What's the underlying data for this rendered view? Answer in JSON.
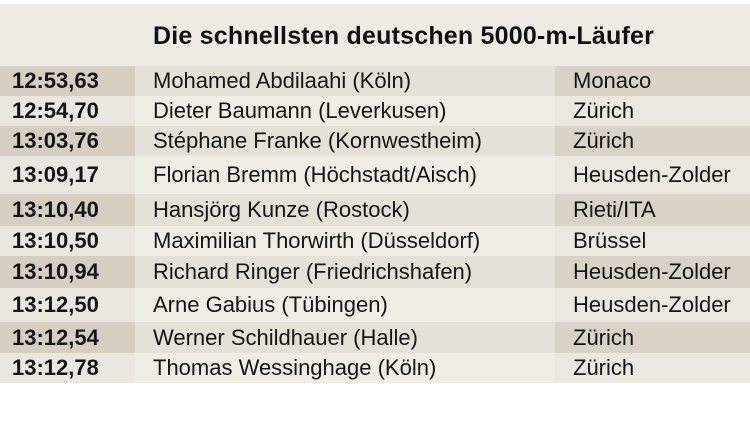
{
  "title": "Die schnellsten deutschen 5000-m-Läufer",
  "rows": [
    {
      "time": "12:53,63",
      "name": "Mohamed Abdilaahi (Köln)",
      "place": "Monaco"
    },
    {
      "time": "12:54,70",
      "name": "Dieter Baumann (Leverkusen)",
      "place": "Zürich"
    },
    {
      "time": "13:03,76",
      "name": "Stéphane Franke (Kornwestheim)",
      "place": "Zürich"
    },
    {
      "time": "13:09,17",
      "name": "Florian Bremm (Höchstadt/Aisch)",
      "place": "Heusden-Zolder"
    },
    {
      "time": "13:10,40",
      "name": "Hansjörg Kunze (Rostock)",
      "place": "Rieti/ITA"
    },
    {
      "time": "13:10,50",
      "name": "Maximilian Thorwirth (Düsseldorf)",
      "place": "Brüssel"
    },
    {
      "time": "13:10,94",
      "name": "Richard Ringer (Friedrichshafen)",
      "place": "Heusden-Zolder"
    },
    {
      "time": "13:12,50",
      "name": "Arne Gabius (Tübingen)",
      "place": "Heusden-Zolder"
    },
    {
      "time": "13:12,54",
      "name": "Werner Schildhauer (Halle)",
      "place": "Zürich"
    },
    {
      "time": "13:12,78",
      "name": "Thomas Wessinghage (Köln)",
      "place": "Zürich"
    }
  ]
}
